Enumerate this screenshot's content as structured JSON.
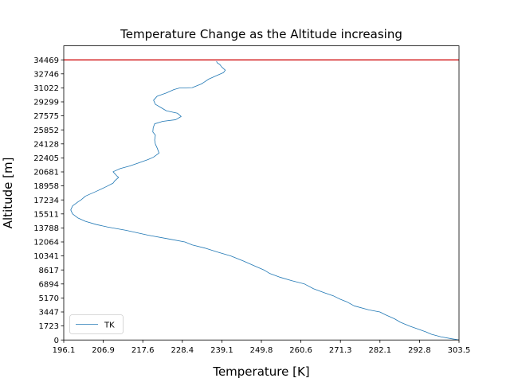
{
  "chart_data": {
    "type": "line",
    "title": "Temperature Change as the Altitude increasing",
    "xlabel": "Temperature [K]",
    "ylabel": "Altitude [m]",
    "xlim": [
      196.1,
      303.5
    ],
    "ylim": [
      0,
      34469
    ],
    "xticks": [
      "196.1",
      "206.9",
      "217.6",
      "228.4",
      "239.1",
      "249.8",
      "260.6",
      "271.3",
      "282.1",
      "292.8",
      "303.5"
    ],
    "yticks": [
      "0",
      "1723",
      "3447",
      "5170",
      "6894",
      "8617",
      "10341",
      "12064",
      "13788",
      "15511",
      "17234",
      "18958",
      "20681",
      "22405",
      "24128",
      "25852",
      "27575",
      "29299",
      "31022",
      "32746",
      "34469"
    ],
    "grid": false,
    "legend_position": "lower-left",
    "series": [
      {
        "name": "TK",
        "color": "#1f77b4",
        "points": [
          [
            303.5,
            0
          ],
          [
            301.5,
            150
          ],
          [
            298.5,
            400
          ],
          [
            296.0,
            700
          ],
          [
            294.5,
            1000
          ],
          [
            292.0,
            1400
          ],
          [
            290.0,
            1723
          ],
          [
            287.5,
            2200
          ],
          [
            286.0,
            2600
          ],
          [
            283.5,
            3100
          ],
          [
            282.0,
            3447
          ],
          [
            279.0,
            3700
          ],
          [
            275.0,
            4200
          ],
          [
            273.0,
            4700
          ],
          [
            271.3,
            5000
          ],
          [
            269.5,
            5400
          ],
          [
            267.0,
            5800
          ],
          [
            264.0,
            6300
          ],
          [
            261.5,
            6894
          ],
          [
            258.0,
            7300
          ],
          [
            255.0,
            7700
          ],
          [
            252.0,
            8200
          ],
          [
            250.5,
            8617
          ],
          [
            248.0,
            9100
          ],
          [
            245.0,
            9700
          ],
          [
            241.5,
            10341
          ],
          [
            238.0,
            10800
          ],
          [
            234.5,
            11300
          ],
          [
            231.0,
            11700
          ],
          [
            229.0,
            12064
          ],
          [
            225.0,
            12400
          ],
          [
            219.0,
            12900
          ],
          [
            213.0,
            13500
          ],
          [
            208.0,
            13900
          ],
          [
            205.0,
            14200
          ],
          [
            202.0,
            14600
          ],
          [
            200.0,
            15000
          ],
          [
            198.5,
            15511
          ],
          [
            198.0,
            16000
          ],
          [
            198.5,
            16500
          ],
          [
            200.0,
            17000
          ],
          [
            200.8,
            17234
          ],
          [
            202.0,
            17700
          ],
          [
            205.0,
            18300
          ],
          [
            207.8,
            18900
          ],
          [
            209.5,
            19300
          ],
          [
            210.0,
            19600
          ],
          [
            211.0,
            20000
          ],
          [
            210.5,
            20200
          ],
          [
            209.5,
            20700
          ],
          [
            211.5,
            21100
          ],
          [
            214.0,
            21400
          ],
          [
            216.5,
            21800
          ],
          [
            219.0,
            22200
          ],
          [
            220.5,
            22500
          ],
          [
            222.0,
            23000
          ],
          [
            221.5,
            23600
          ],
          [
            221.0,
            24100
          ],
          [
            220.8,
            24600
          ],
          [
            221.0,
            25200
          ],
          [
            220.3,
            25600
          ],
          [
            220.4,
            26100
          ],
          [
            220.8,
            26600
          ],
          [
            223.0,
            26900
          ],
          [
            226.5,
            27100
          ],
          [
            228.0,
            27500
          ],
          [
            227.0,
            27900
          ],
          [
            224.0,
            28200
          ],
          [
            222.5,
            28600
          ],
          [
            221.0,
            29000
          ],
          [
            220.5,
            29500
          ],
          [
            221.5,
            30000
          ],
          [
            224.0,
            30400
          ],
          [
            226.0,
            30800
          ],
          [
            227.5,
            31000
          ],
          [
            231.0,
            31050
          ],
          [
            233.5,
            31500
          ],
          [
            235.5,
            32100
          ],
          [
            237.5,
            32500
          ],
          [
            239.5,
            32900
          ],
          [
            240.0,
            33200
          ],
          [
            239.0,
            33600
          ],
          [
            238.5,
            33900
          ],
          [
            237.8,
            34100
          ],
          [
            237.6,
            34300
          ]
        ]
      }
    ],
    "reference_line": {
      "y": 34469,
      "color": "#d62728"
    }
  }
}
